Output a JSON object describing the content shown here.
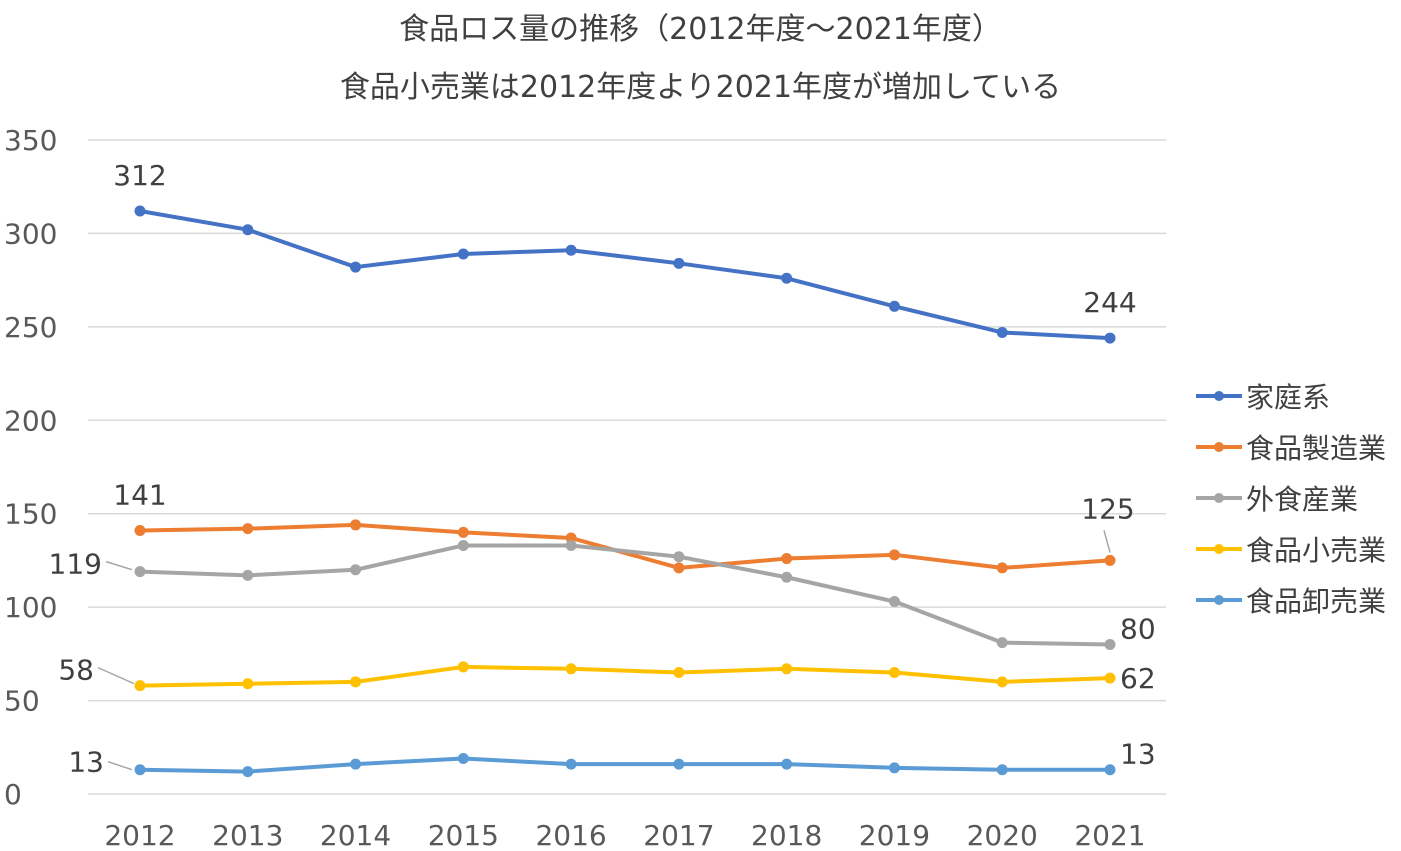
{
  "chart_data": {
    "type": "line",
    "title": "食品ロス量の推移（2012年度～2021年度）",
    "subtitle": "食品小売業は2012年度より2021年度が増加している",
    "categories": [
      "2012",
      "2013",
      "2014",
      "2015",
      "2016",
      "2017",
      "2018",
      "2019",
      "2020",
      "2021"
    ],
    "ylim": [
      0,
      350
    ],
    "yticks": [
      "0",
      "50",
      "100",
      "150",
      "200",
      "250",
      "300",
      "350"
    ],
    "grid": true,
    "legend_position": "right",
    "series": [
      {
        "name": "家庭系",
        "color": "#4472C4",
        "values": [
          312,
          302,
          282,
          289,
          291,
          284,
          276,
          261,
          247,
          244
        ],
        "labels": [
          {
            "index": 0,
            "text": "312"
          },
          {
            "index": 9,
            "text": "244"
          }
        ]
      },
      {
        "name": "食品製造業",
        "color": "#ED7D31",
        "values": [
          141,
          142,
          144,
          140,
          137,
          121,
          126,
          128,
          121,
          125
        ],
        "labels": [
          {
            "index": 0,
            "text": "141"
          },
          {
            "index": 9,
            "text": "125"
          }
        ]
      },
      {
        "name": "外食産業",
        "color": "#A5A5A5",
        "values": [
          119,
          117,
          120,
          133,
          133,
          127,
          116,
          103,
          81,
          80
        ],
        "labels": [
          {
            "index": 0,
            "text": "119"
          },
          {
            "index": 9,
            "text": "80"
          }
        ]
      },
      {
        "name": "食品小売業",
        "color": "#FFC000",
        "values": [
          58,
          59,
          60,
          68,
          67,
          65,
          67,
          65,
          60,
          62
        ],
        "labels": [
          {
            "index": 0,
            "text": "58"
          },
          {
            "index": 9,
            "text": "62"
          }
        ]
      },
      {
        "name": "食品卸売業",
        "color": "#5B9BD5",
        "values": [
          13,
          12,
          16,
          19,
          16,
          16,
          16,
          14,
          13,
          13
        ],
        "labels": [
          {
            "index": 0,
            "text": "13"
          },
          {
            "index": 9,
            "text": "13"
          }
        ]
      }
    ]
  }
}
